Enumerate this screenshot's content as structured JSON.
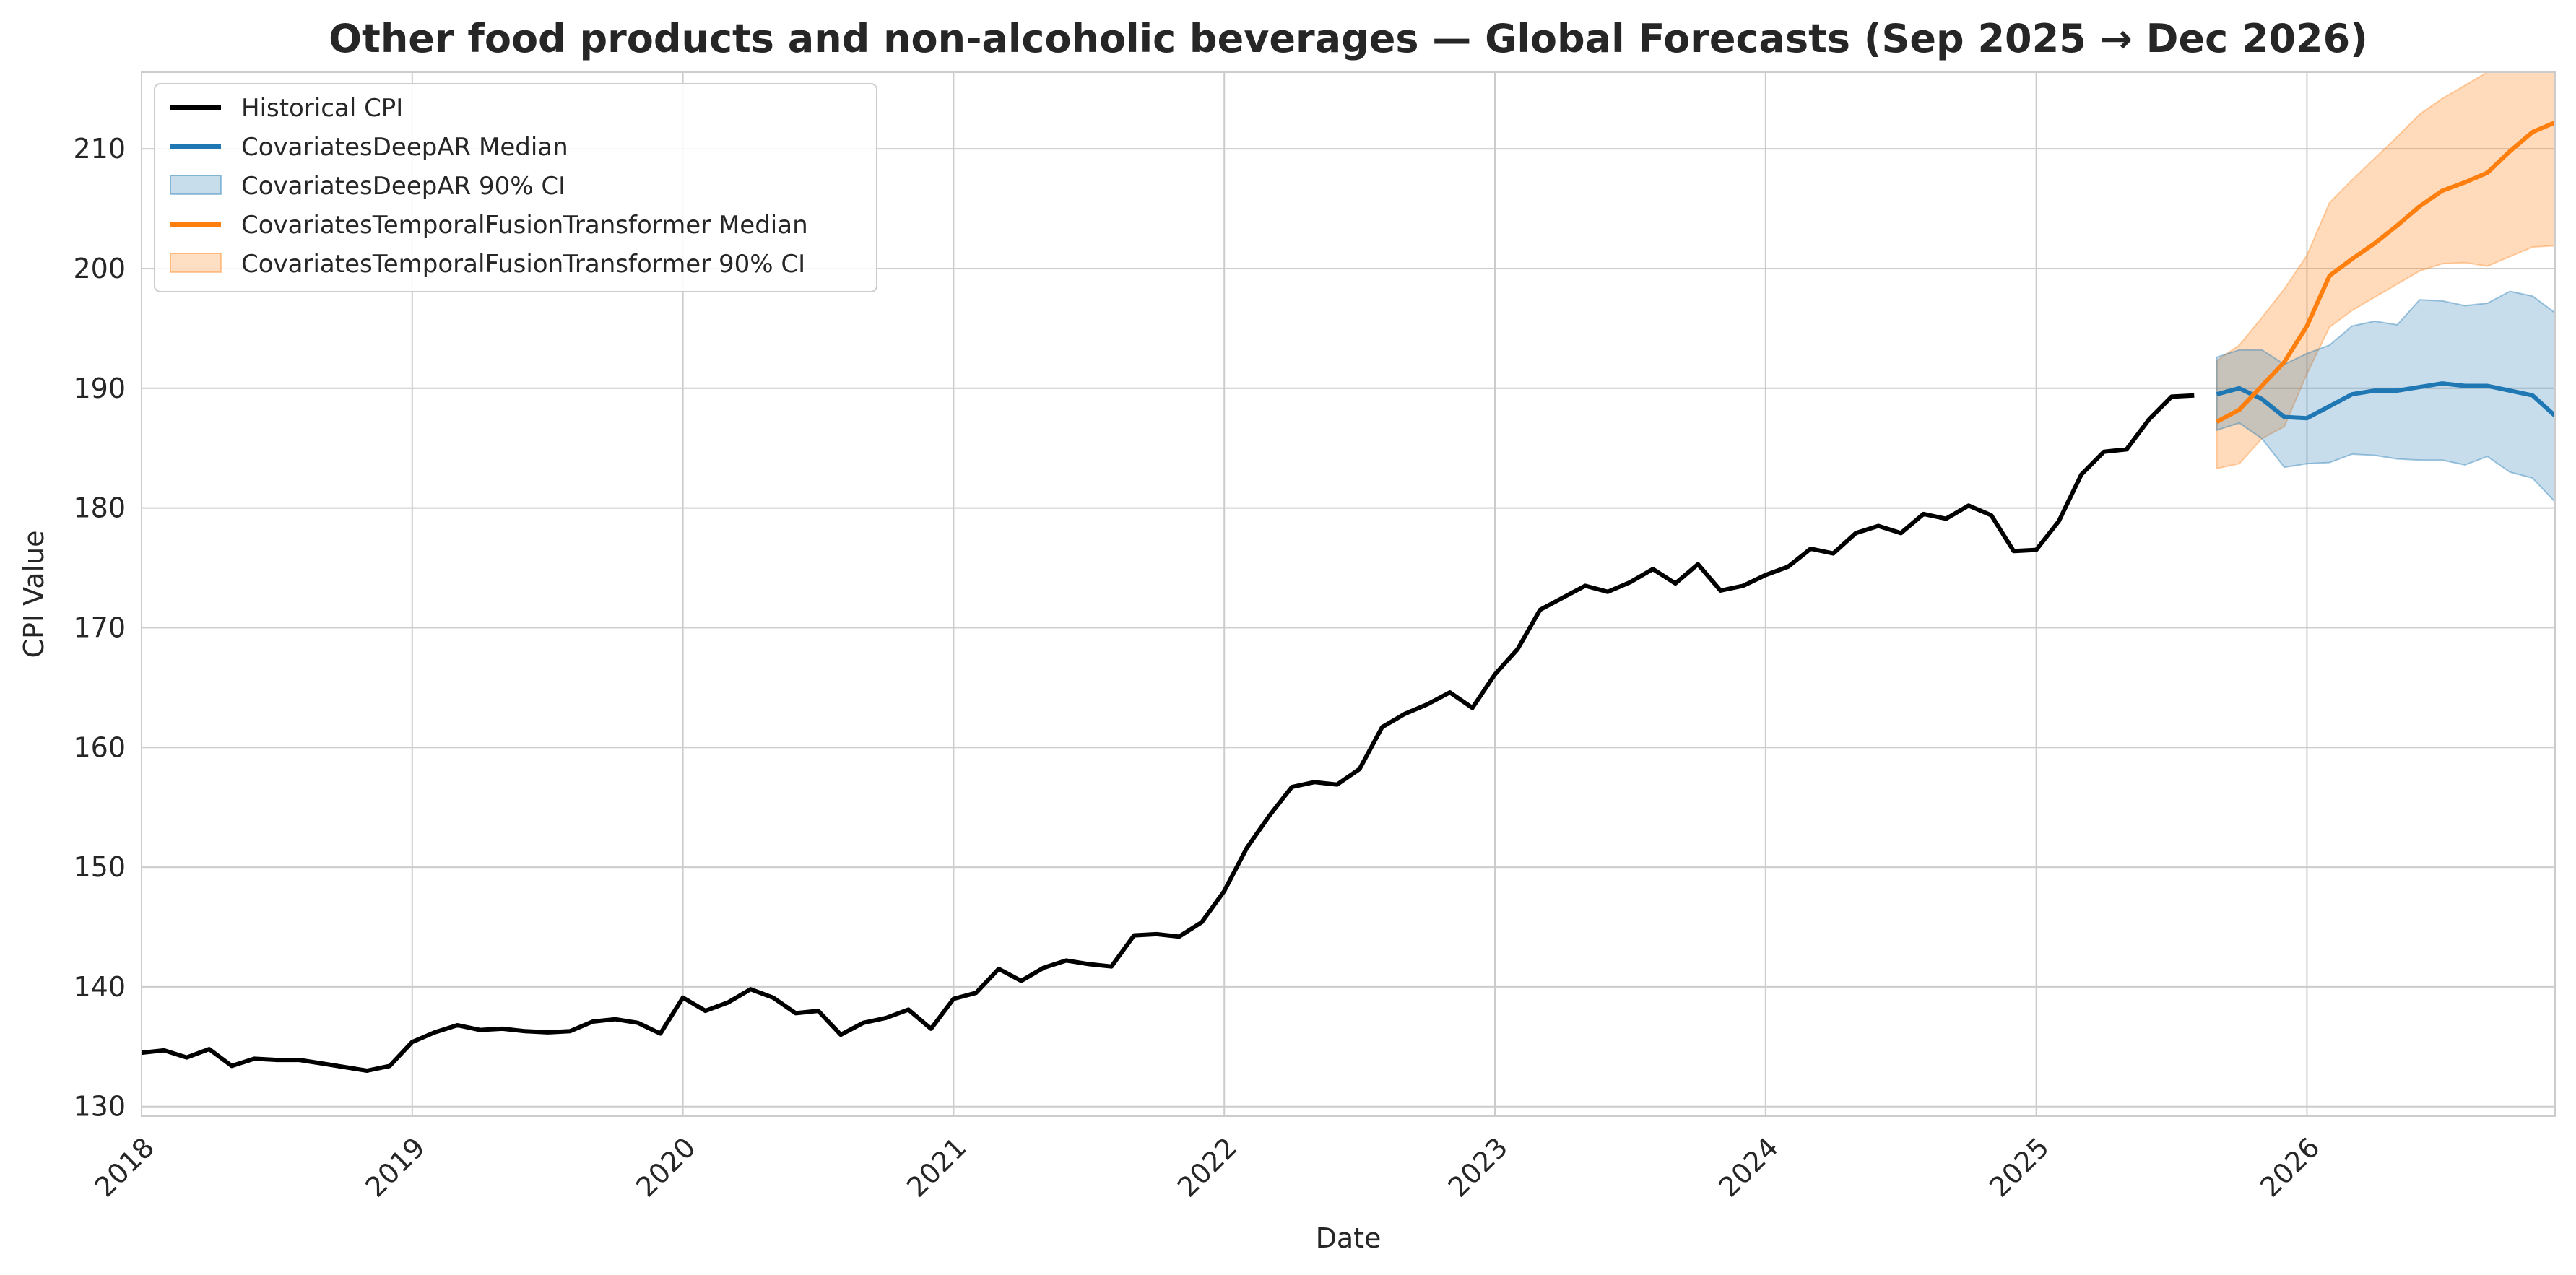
{
  "chart_data": {
    "type": "line",
    "title": "Other food products and non-alcoholic beverages — Global Forecasts (Sep 2025 → Dec 2026)",
    "xlabel": "Date",
    "ylabel": "CPI Value",
    "xlim": [
      "2018-01",
      "2026-12"
    ],
    "ylim": [
      129.2,
      216.4
    ],
    "x_ticks": [
      "2018",
      "2019",
      "2020",
      "2021",
      "2022",
      "2023",
      "2024",
      "2025",
      "2026"
    ],
    "y_ticks": [
      130,
      140,
      150,
      160,
      170,
      180,
      190,
      200,
      210
    ],
    "grid": true,
    "legend_position": "top-left",
    "legend": [
      "Historical CPI",
      "CovariatesDeepAR Median",
      "CovariatesDeepAR 90% CI",
      "CovariatesTemporalFusionTransformer Median",
      "CovariatesTemporalFusionTransformer 90% CI"
    ],
    "historical": {
      "name": "Historical CPI",
      "color": "#000000",
      "start": "2018-01",
      "values": [
        134.5,
        134.7,
        134.1,
        134.8,
        133.4,
        134.0,
        133.9,
        133.9,
        133.6,
        133.3,
        133.0,
        133.4,
        135.4,
        136.2,
        136.8,
        136.4,
        136.5,
        136.3,
        136.2,
        136.3,
        137.1,
        137.3,
        137.0,
        136.1,
        139.1,
        138.0,
        138.7,
        139.8,
        139.1,
        137.8,
        138.0,
        136.0,
        137.0,
        137.4,
        138.1,
        136.5,
        139.0,
        139.5,
        141.5,
        140.5,
        141.6,
        142.2,
        141.9,
        141.7,
        144.3,
        144.4,
        144.2,
        145.4,
        148.0,
        151.6,
        154.3,
        156.7,
        157.1,
        156.9,
        158.2,
        161.7,
        162.8,
        163.6,
        164.6,
        163.3,
        166.1,
        168.2,
        171.5,
        172.5,
        173.5,
        173.0,
        173.8,
        174.9,
        173.7,
        175.3,
        173.1,
        173.5,
        174.4,
        175.1,
        176.6,
        176.2,
        177.9,
        178.5,
        177.9,
        179.5,
        179.1,
        180.2,
        179.4,
        176.4,
        176.5,
        178.9,
        182.8,
        184.7,
        184.9,
        187.4,
        189.3,
        189.4
      ]
    },
    "deepar": {
      "name": "CovariatesDeepAR",
      "color": "#1f77b4",
      "start": "2025-09",
      "median": [
        189.5,
        190.0,
        189.1,
        187.6,
        187.5,
        188.5,
        189.5,
        189.8,
        189.8,
        190.1,
        190.4,
        190.2,
        190.2,
        189.8,
        189.4,
        187.7
      ],
      "ci_low": [
        186.5,
        187.1,
        185.8,
        183.4,
        183.7,
        183.8,
        184.5,
        184.4,
        184.1,
        184.0,
        184.0,
        183.6,
        184.3,
        183.0,
        182.5,
        180.5
      ],
      "ci_high": [
        192.6,
        193.2,
        193.2,
        192.0,
        192.9,
        193.6,
        195.2,
        195.6,
        195.3,
        197.4,
        197.3,
        196.9,
        197.1,
        198.1,
        197.7,
        196.3
      ]
    },
    "tft": {
      "name": "CovariatesTemporalFusionTransformer",
      "color": "#ff7f0e",
      "start": "2025-09",
      "median": [
        187.2,
        188.2,
        190.2,
        192.2,
        195.2,
        199.4,
        200.8,
        202.1,
        203.6,
        205.2,
        206.5,
        207.2,
        208.0,
        209.8,
        211.4,
        212.2
      ],
      "ci_low": [
        183.3,
        183.7,
        185.8,
        186.8,
        191.2,
        195.1,
        196.5,
        197.6,
        198.7,
        199.8,
        200.4,
        200.5,
        200.2,
        201.0,
        201.8,
        201.9
      ],
      "ci_high": [
        192.3,
        193.6,
        195.9,
        198.3,
        201.1,
        205.5,
        207.4,
        209.2,
        211.0,
        212.9,
        214.2,
        215.3,
        216.4,
        216.4,
        216.4,
        216.4
      ]
    }
  }
}
